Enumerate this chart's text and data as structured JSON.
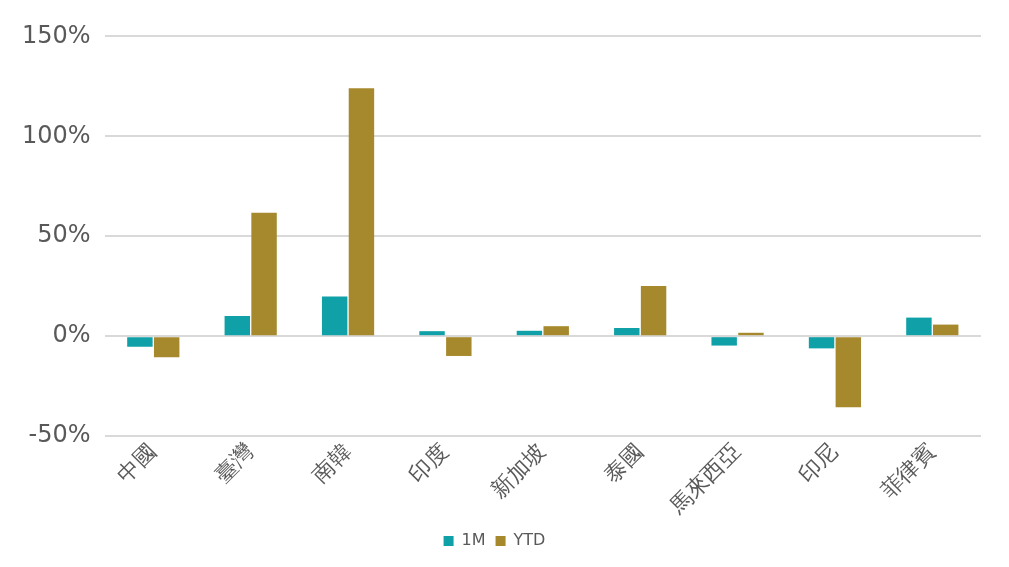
{
  "chart_data": {
    "type": "bar",
    "categories": [
      "中國",
      "臺灣",
      "南韓",
      "印度",
      "新加坡",
      "泰國",
      "馬來西亞",
      "印尼",
      "菲律賓"
    ],
    "series": [
      {
        "name": "1M",
        "color": "#10a0a8",
        "values": [
          -5.3,
          10.1,
          19.9,
          2.5,
          2.7,
          4.1,
          -4.7,
          -6.1,
          9.3
        ]
      },
      {
        "name": "YTD",
        "color": "#a6892c",
        "values": [
          -10.5,
          61.7,
          124,
          -9.9,
          5,
          25.1,
          1.7,
          -35.5,
          5.8
        ]
      }
    ],
    "ylim": [
      -50,
      150
    ],
    "yticks": [
      {
        "value": -50,
        "label": "-50%"
      },
      {
        "value": 0,
        "label": "0%"
      },
      {
        "value": 50,
        "label": "50%"
      },
      {
        "value": 100,
        "label": "100%"
      },
      {
        "value": 150,
        "label": "150%"
      }
    ],
    "grid": "y",
    "legend": "bottom"
  }
}
